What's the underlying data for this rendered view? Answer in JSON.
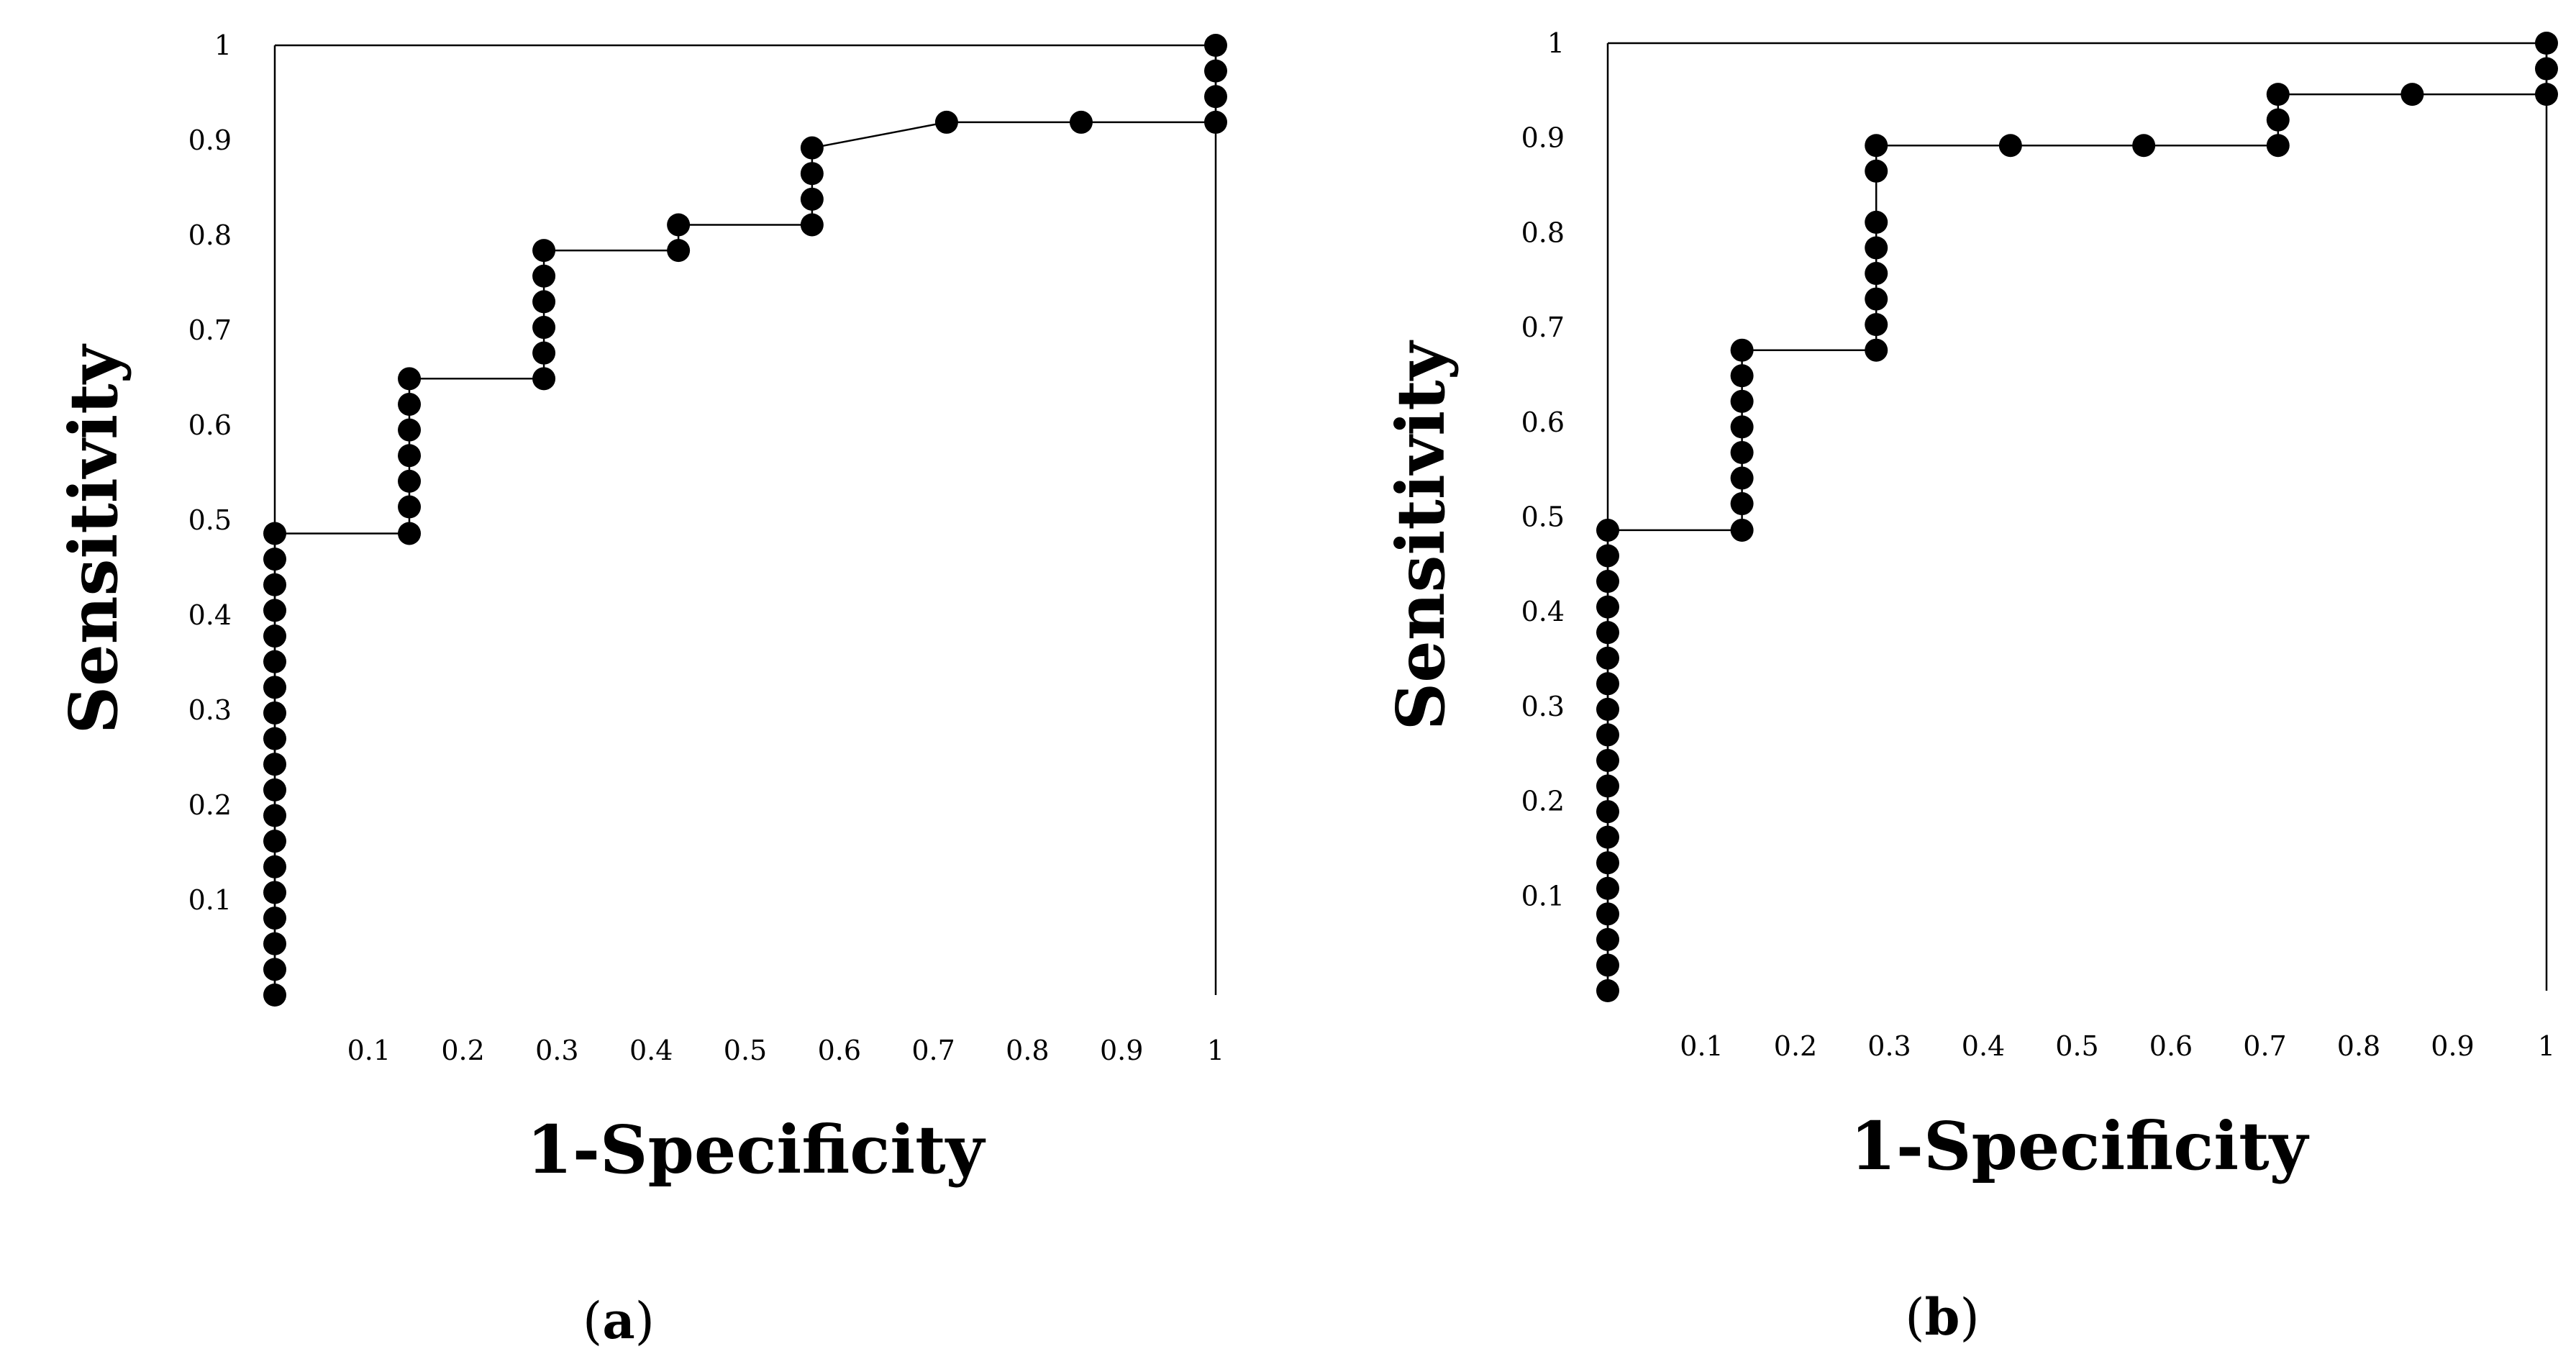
{
  "chart_data": [
    {
      "type": "scatter",
      "panel_label": "a",
      "xlabel": "1-Specificity",
      "ylabel": "Sensitivity",
      "xlim": [
        0,
        1
      ],
      "ylim": [
        0,
        1
      ],
      "xticks": [
        "0.1",
        "0.2",
        "0.3",
        "0.4",
        "0.5",
        "0.6",
        "0.7",
        "0.8",
        "0.9",
        "1"
      ],
      "yticks": [
        "0.1",
        "0.2",
        "0.3",
        "0.4",
        "0.5",
        "0.6",
        "0.7",
        "0.8",
        "0.9",
        "1"
      ],
      "line": [
        [
          0,
          0
        ],
        [
          0,
          0.486
        ],
        [
          0.143,
          0.486
        ],
        [
          0.143,
          0.649
        ],
        [
          0.286,
          0.649
        ],
        [
          0.286,
          0.784
        ],
        [
          0.429,
          0.784
        ],
        [
          0.429,
          0.811
        ],
        [
          0.571,
          0.811
        ],
        [
          0.571,
          0.892
        ],
        [
          0.714,
          0.919
        ],
        [
          1,
          0.919
        ],
        [
          1,
          1
        ],
        [
          0,
          1
        ]
      ],
      "points": [
        [
          0,
          0
        ],
        [
          0,
          0.027
        ],
        [
          0,
          0.054
        ],
        [
          0,
          0.081
        ],
        [
          0,
          0.108
        ],
        [
          0,
          0.135
        ],
        [
          0,
          0.162
        ],
        [
          0,
          0.189
        ],
        [
          0,
          0.216
        ],
        [
          0,
          0.243
        ],
        [
          0,
          0.27
        ],
        [
          0,
          0.297
        ],
        [
          0,
          0.324
        ],
        [
          0,
          0.351
        ],
        [
          0,
          0.378
        ],
        [
          0,
          0.405
        ],
        [
          0,
          0.432
        ],
        [
          0,
          0.459
        ],
        [
          0,
          0.486
        ],
        [
          0.143,
          0.486
        ],
        [
          0.143,
          0.514
        ],
        [
          0.143,
          0.541
        ],
        [
          0.143,
          0.568
        ],
        [
          0.143,
          0.595
        ],
        [
          0.143,
          0.622
        ],
        [
          0.143,
          0.649
        ],
        [
          0.286,
          0.649
        ],
        [
          0.286,
          0.676
        ],
        [
          0.286,
          0.703
        ],
        [
          0.286,
          0.73
        ],
        [
          0.286,
          0.757
        ],
        [
          0.286,
          0.784
        ],
        [
          0.429,
          0.784
        ],
        [
          0.429,
          0.811
        ],
        [
          0.571,
          0.811
        ],
        [
          0.571,
          0.838
        ],
        [
          0.571,
          0.865
        ],
        [
          0.571,
          0.892
        ],
        [
          0.714,
          0.919
        ],
        [
          0.857,
          0.919
        ],
        [
          1,
          0.919
        ],
        [
          1,
          0.946
        ],
        [
          1,
          0.973
        ],
        [
          1,
          1
        ]
      ]
    },
    {
      "type": "scatter",
      "panel_label": "b",
      "xlabel": "1-Specificity",
      "ylabel": "Sensitivity",
      "xlim": [
        0,
        1
      ],
      "ylim": [
        0,
        1
      ],
      "xticks": [
        "0.1",
        "0.2",
        "0.3",
        "0.4",
        "0.5",
        "0.6",
        "0.7",
        "0.8",
        "0.9",
        "1"
      ],
      "yticks": [
        "0.1",
        "0.2",
        "0.3",
        "0.4",
        "0.5",
        "0.6",
        "0.7",
        "0.8",
        "0.9",
        "1"
      ],
      "line": [
        [
          0,
          0
        ],
        [
          0,
          0.486
        ],
        [
          0.143,
          0.486
        ],
        [
          0.143,
          0.676
        ],
        [
          0.286,
          0.676
        ],
        [
          0.286,
          0.892
        ],
        [
          0.714,
          0.892
        ],
        [
          0.714,
          0.946
        ],
        [
          1,
          0.946
        ],
        [
          1,
          1
        ],
        [
          0,
          1
        ]
      ],
      "points": [
        [
          0,
          0
        ],
        [
          0,
          0.027
        ],
        [
          0,
          0.054
        ],
        [
          0,
          0.081
        ],
        [
          0,
          0.108
        ],
        [
          0,
          0.135
        ],
        [
          0,
          0.162
        ],
        [
          0,
          0.189
        ],
        [
          0,
          0.216
        ],
        [
          0,
          0.243
        ],
        [
          0,
          0.27
        ],
        [
          0,
          0.297
        ],
        [
          0,
          0.324
        ],
        [
          0,
          0.351
        ],
        [
          0,
          0.378
        ],
        [
          0,
          0.405
        ],
        [
          0,
          0.432
        ],
        [
          0,
          0.459
        ],
        [
          0,
          0.486
        ],
        [
          0.143,
          0.486
        ],
        [
          0.143,
          0.514
        ],
        [
          0.143,
          0.541
        ],
        [
          0.143,
          0.568
        ],
        [
          0.143,
          0.595
        ],
        [
          0.143,
          0.622
        ],
        [
          0.143,
          0.649
        ],
        [
          0.143,
          0.676
        ],
        [
          0.286,
          0.676
        ],
        [
          0.286,
          0.703
        ],
        [
          0.286,
          0.73
        ],
        [
          0.286,
          0.757
        ],
        [
          0.286,
          0.784
        ],
        [
          0.286,
          0.811
        ],
        [
          0.286,
          0.865
        ],
        [
          0.286,
          0.892
        ],
        [
          0.429,
          0.892
        ],
        [
          0.571,
          0.892
        ],
        [
          0.714,
          0.892
        ],
        [
          0.714,
          0.919
        ],
        [
          0.714,
          0.946
        ],
        [
          0.857,
          0.946
        ],
        [
          1,
          0.946
        ],
        [
          1,
          0.973
        ],
        [
          1,
          1
        ]
      ]
    }
  ]
}
